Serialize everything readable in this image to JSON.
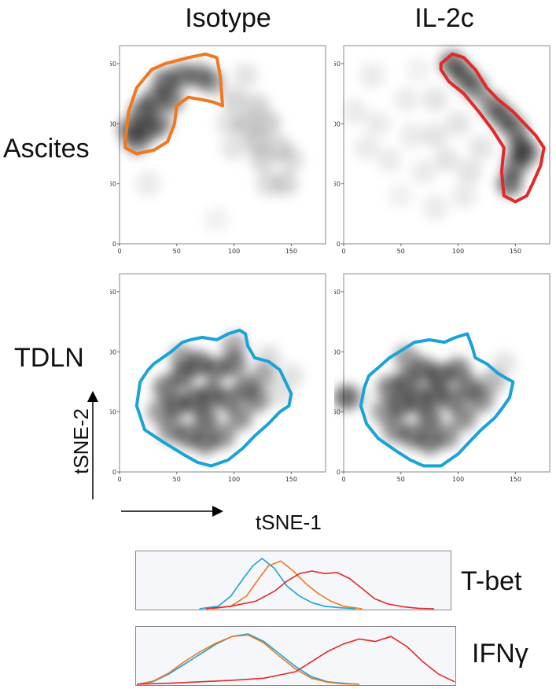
{
  "headers": {
    "col1": "Isotype",
    "col2": "IL-2c",
    "row1": "Ascites",
    "row2": "TDLN"
  },
  "axes": {
    "x_label": "tSNE-1",
    "y_label": "tSNE-2"
  },
  "histograms": {
    "label1": "T-bet",
    "label2": "IFNγ"
  },
  "colors": {
    "isotype_gate": "#f07820",
    "il2c_gate": "#e02a2a",
    "tdln_gate": "#1aa3d8",
    "density": "#000000"
  },
  "chart_data": [
    {
      "type": "scatter",
      "panel": "ascites-isotype",
      "x_ticks": [
        0,
        50,
        100,
        150
      ],
      "y_ticks": [
        0,
        50,
        100,
        150
      ],
      "xlim": [
        0,
        180
      ],
      "ylim": [
        0,
        165
      ],
      "gate_color": "orange",
      "gate": [
        [
          5,
          85
        ],
        [
          8,
          110
        ],
        [
          15,
          130
        ],
        [
          28,
          145
        ],
        [
          40,
          150
        ],
        [
          60,
          155
        ],
        [
          75,
          158
        ],
        [
          85,
          155
        ],
        [
          88,
          140
        ],
        [
          90,
          115
        ],
        [
          82,
          118
        ],
        [
          72,
          120
        ],
        [
          60,
          122
        ],
        [
          50,
          115
        ],
        [
          48,
          100
        ],
        [
          42,
          85
        ],
        [
          30,
          78
        ],
        [
          15,
          75
        ],
        [
          5,
          80
        ]
      ],
      "density": [
        [
          10,
          95,
          1.0
        ],
        [
          20,
          110,
          1.0
        ],
        [
          30,
          120,
          0.9
        ],
        [
          40,
          135,
          1.0
        ],
        [
          25,
          95,
          0.9
        ],
        [
          35,
          100,
          0.8
        ],
        [
          55,
          140,
          0.9
        ],
        [
          70,
          140,
          0.8
        ],
        [
          80,
          135,
          0.7
        ],
        [
          15,
          85,
          0.8
        ],
        [
          45,
          120,
          0.9
        ],
        [
          100,
          120,
          0.3
        ],
        [
          110,
          100,
          0.35
        ],
        [
          120,
          115,
          0.3
        ],
        [
          130,
          100,
          0.35
        ],
        [
          140,
          80,
          0.3
        ],
        [
          125,
          70,
          0.3
        ],
        [
          150,
          70,
          0.25
        ],
        [
          130,
          50,
          0.25
        ],
        [
          145,
          50,
          0.3
        ],
        [
          100,
          80,
          0.2
        ],
        [
          120,
          85,
          0.35
        ],
        [
          110,
          140,
          0.2
        ],
        [
          95,
          100,
          0.2
        ],
        [
          25,
          50,
          0.15
        ],
        [
          85,
          20,
          0.1
        ]
      ]
    },
    {
      "type": "scatter",
      "panel": "ascites-il2c",
      "x_ticks": [
        0,
        50,
        100,
        150
      ],
      "y_ticks": [
        0,
        50,
        100,
        150
      ],
      "xlim": [
        0,
        180
      ],
      "ylim": [
        0,
        165
      ],
      "gate_color": "red",
      "gate": [
        [
          85,
          150
        ],
        [
          95,
          158
        ],
        [
          105,
          155
        ],
        [
          115,
          145
        ],
        [
          125,
          130
        ],
        [
          135,
          120
        ],
        [
          148,
          110
        ],
        [
          158,
          100
        ],
        [
          168,
          90
        ],
        [
          175,
          80
        ],
        [
          172,
          65
        ],
        [
          165,
          50
        ],
        [
          160,
          40
        ],
        [
          150,
          35
        ],
        [
          140,
          40
        ],
        [
          138,
          60
        ],
        [
          140,
          80
        ],
        [
          130,
          95
        ],
        [
          118,
          110
        ],
        [
          105,
          125
        ],
        [
          92,
          135
        ],
        [
          85,
          145
        ]
      ],
      "density": [
        [
          95,
          150,
          1.0
        ],
        [
          105,
          140,
          1.0
        ],
        [
          115,
          130,
          0.9
        ],
        [
          130,
          115,
          0.9
        ],
        [
          140,
          105,
          1.0
        ],
        [
          150,
          95,
          0.9
        ],
        [
          155,
          80,
          1.0
        ],
        [
          150,
          65,
          0.9
        ],
        [
          145,
          50,
          1.0
        ],
        [
          160,
          75,
          0.8
        ],
        [
          10,
          110,
          0.15
        ],
        [
          25,
          140,
          0.15
        ],
        [
          30,
          100,
          0.15
        ],
        [
          40,
          70,
          0.15
        ],
        [
          55,
          120,
          0.15
        ],
        [
          60,
          90,
          0.15
        ],
        [
          70,
          60,
          0.15
        ],
        [
          80,
          120,
          0.2
        ],
        [
          80,
          90,
          0.2
        ],
        [
          90,
          70,
          0.2
        ],
        [
          100,
          100,
          0.2
        ],
        [
          110,
          60,
          0.2
        ],
        [
          120,
          80,
          0.2
        ],
        [
          105,
          40,
          0.15
        ],
        [
          50,
          40,
          0.1
        ],
        [
          80,
          30,
          0.15
        ],
        [
          20,
          80,
          0.15
        ],
        [
          65,
          145,
          0.1
        ]
      ]
    },
    {
      "type": "scatter",
      "panel": "tdln-isotype",
      "x_ticks": [
        0,
        50,
        100,
        150
      ],
      "y_ticks": [
        0,
        50,
        100,
        150
      ],
      "xlim": [
        0,
        180
      ],
      "ylim": [
        0,
        165
      ],
      "gate_color": "blue",
      "gate": [
        [
          30,
          90
        ],
        [
          45,
          100
        ],
        [
          55,
          108
        ],
        [
          62,
          110
        ],
        [
          72,
          112
        ],
        [
          85,
          110
        ],
        [
          95,
          115
        ],
        [
          105,
          118
        ],
        [
          110,
          115
        ],
        [
          112,
          105
        ],
        [
          118,
          95
        ],
        [
          130,
          92
        ],
        [
          140,
          85
        ],
        [
          145,
          75
        ],
        [
          150,
          65
        ],
        [
          148,
          55
        ],
        [
          140,
          50
        ],
        [
          130,
          40
        ],
        [
          118,
          30
        ],
        [
          108,
          20
        ],
        [
          95,
          10
        ],
        [
          80,
          5
        ],
        [
          68,
          8
        ],
        [
          55,
          15
        ],
        [
          38,
          25
        ],
        [
          22,
          35
        ],
        [
          15,
          55
        ],
        [
          18,
          75
        ],
        [
          25,
          85
        ]
      ],
      "density": [
        [
          40,
          70,
          0.9
        ],
        [
          55,
          80,
          1.0
        ],
        [
          70,
          90,
          1.0
        ],
        [
          85,
          85,
          0.9
        ],
        [
          100,
          90,
          0.9
        ],
        [
          110,
          70,
          0.9
        ],
        [
          120,
          60,
          0.8
        ],
        [
          50,
          55,
          1.0
        ],
        [
          65,
          60,
          1.0
        ],
        [
          80,
          65,
          1.0
        ],
        [
          95,
          60,
          0.9
        ],
        [
          105,
          45,
          0.8
        ],
        [
          45,
          35,
          0.8
        ],
        [
          60,
          30,
          0.9
        ],
        [
          75,
          25,
          0.9
        ],
        [
          90,
          30,
          0.8
        ],
        [
          35,
          50,
          0.7
        ],
        [
          100,
          105,
          0.6
        ],
        [
          125,
          80,
          0.6
        ],
        [
          75,
          45,
          1.0
        ],
        [
          130,
          95,
          0.25
        ],
        [
          150,
          80,
          0.2
        ],
        [
          140,
          65,
          0.2
        ],
        [
          55,
          95,
          0.7
        ]
      ]
    },
    {
      "type": "scatter",
      "panel": "tdln-il2c",
      "x_ticks": [
        0,
        50,
        100,
        150
      ],
      "y_ticks": [
        0,
        50,
        100,
        150
      ],
      "xlim": [
        0,
        180
      ],
      "ylim": [
        0,
        165
      ],
      "gate_color": "blue",
      "gate": [
        [
          28,
          85
        ],
        [
          40,
          95
        ],
        [
          52,
          102
        ],
        [
          62,
          108
        ],
        [
          75,
          110
        ],
        [
          88,
          108
        ],
        [
          98,
          112
        ],
        [
          108,
          115
        ],
        [
          112,
          105
        ],
        [
          115,
          95
        ],
        [
          125,
          90
        ],
        [
          135,
          82
        ],
        [
          142,
          78
        ],
        [
          148,
          75
        ],
        [
          145,
          62
        ],
        [
          140,
          55
        ],
        [
          132,
          45
        ],
        [
          120,
          35
        ],
        [
          110,
          25
        ],
        [
          100,
          15
        ],
        [
          85,
          5
        ],
        [
          70,
          5
        ],
        [
          58,
          10
        ],
        [
          45,
          18
        ],
        [
          30,
          28
        ],
        [
          20,
          40
        ],
        [
          15,
          55
        ],
        [
          18,
          70
        ],
        [
          22,
          80
        ]
      ],
      "density": [
        [
          40,
          70,
          0.9
        ],
        [
          55,
          75,
          1.0
        ],
        [
          70,
          85,
          1.0
        ],
        [
          85,
          80,
          1.0
        ],
        [
          100,
          85,
          0.9
        ],
        [
          110,
          70,
          0.9
        ],
        [
          120,
          60,
          0.8
        ],
        [
          50,
          55,
          1.0
        ],
        [
          65,
          60,
          1.0
        ],
        [
          80,
          65,
          1.0
        ],
        [
          95,
          60,
          0.9
        ],
        [
          105,
          45,
          0.8
        ],
        [
          45,
          35,
          0.8
        ],
        [
          60,
          30,
          0.9
        ],
        [
          75,
          25,
          0.9
        ],
        [
          90,
          30,
          0.8
        ],
        [
          35,
          50,
          0.7
        ],
        [
          130,
          75,
          0.5
        ],
        [
          75,
          45,
          1.0
        ],
        [
          2,
          62,
          1.0
        ],
        [
          12,
          62,
          0.2
        ],
        [
          140,
          90,
          0.2
        ],
        [
          55,
          95,
          0.7
        ]
      ]
    },
    {
      "type": "line",
      "panel": "histogram-tbet",
      "label": "T-bet",
      "xlim": [
        0,
        100
      ],
      "ylim": [
        0,
        1
      ],
      "series": [
        {
          "color": "blue",
          "x": [
            20,
            26,
            30,
            34,
            37,
            40,
            44,
            48,
            52,
            56,
            60,
            65,
            70
          ],
          "y": [
            0,
            0.05,
            0.25,
            0.6,
            0.85,
            1.0,
            0.8,
            0.45,
            0.25,
            0.12,
            0.05,
            0.02,
            0
          ]
        },
        {
          "color": "orange",
          "x": [
            24,
            30,
            35,
            39,
            42,
            46,
            50,
            54,
            58,
            62,
            66,
            72
          ],
          "y": [
            0,
            0.05,
            0.25,
            0.6,
            0.85,
            0.95,
            0.75,
            0.5,
            0.3,
            0.15,
            0.05,
            0
          ]
        },
        {
          "color": "red",
          "x": [
            22,
            30,
            38,
            44,
            48,
            52,
            56,
            60,
            64,
            68,
            72,
            76,
            80,
            85,
            90,
            95
          ],
          "y": [
            0,
            0.05,
            0.15,
            0.35,
            0.55,
            0.7,
            0.75,
            0.7,
            0.72,
            0.6,
            0.4,
            0.2,
            0.1,
            0.04,
            0.01,
            0
          ]
        }
      ]
    },
    {
      "type": "line",
      "panel": "histogram-ifng",
      "label": "IFNγ",
      "xlim": [
        0,
        100
      ],
      "ylim": [
        0,
        1
      ],
      "series": [
        {
          "color": "blue",
          "x": [
            0,
            5,
            10,
            15,
            20,
            25,
            30,
            35,
            40,
            45,
            50,
            55,
            60,
            65,
            70
          ],
          "y": [
            0,
            0.05,
            0.2,
            0.4,
            0.6,
            0.8,
            0.95,
            1.0,
            0.85,
            0.6,
            0.35,
            0.15,
            0.05,
            0.02,
            0
          ]
        },
        {
          "color": "orange",
          "x": [
            0,
            5,
            10,
            15,
            20,
            25,
            30,
            35,
            40,
            45,
            50,
            55,
            60,
            65,
            70
          ],
          "y": [
            0,
            0.06,
            0.22,
            0.45,
            0.65,
            0.82,
            0.95,
            0.98,
            0.82,
            0.55,
            0.3,
            0.12,
            0.04,
            0.01,
            0
          ]
        },
        {
          "color": "red",
          "x": [
            0,
            10,
            20,
            30,
            40,
            50,
            55,
            60,
            65,
            70,
            75,
            80,
            85,
            90,
            95,
            100
          ],
          "y": [
            0,
            0.02,
            0.05,
            0.08,
            0.12,
            0.25,
            0.45,
            0.65,
            0.8,
            0.9,
            0.85,
            0.95,
            0.75,
            0.45,
            0.2,
            0.05
          ]
        }
      ]
    }
  ]
}
